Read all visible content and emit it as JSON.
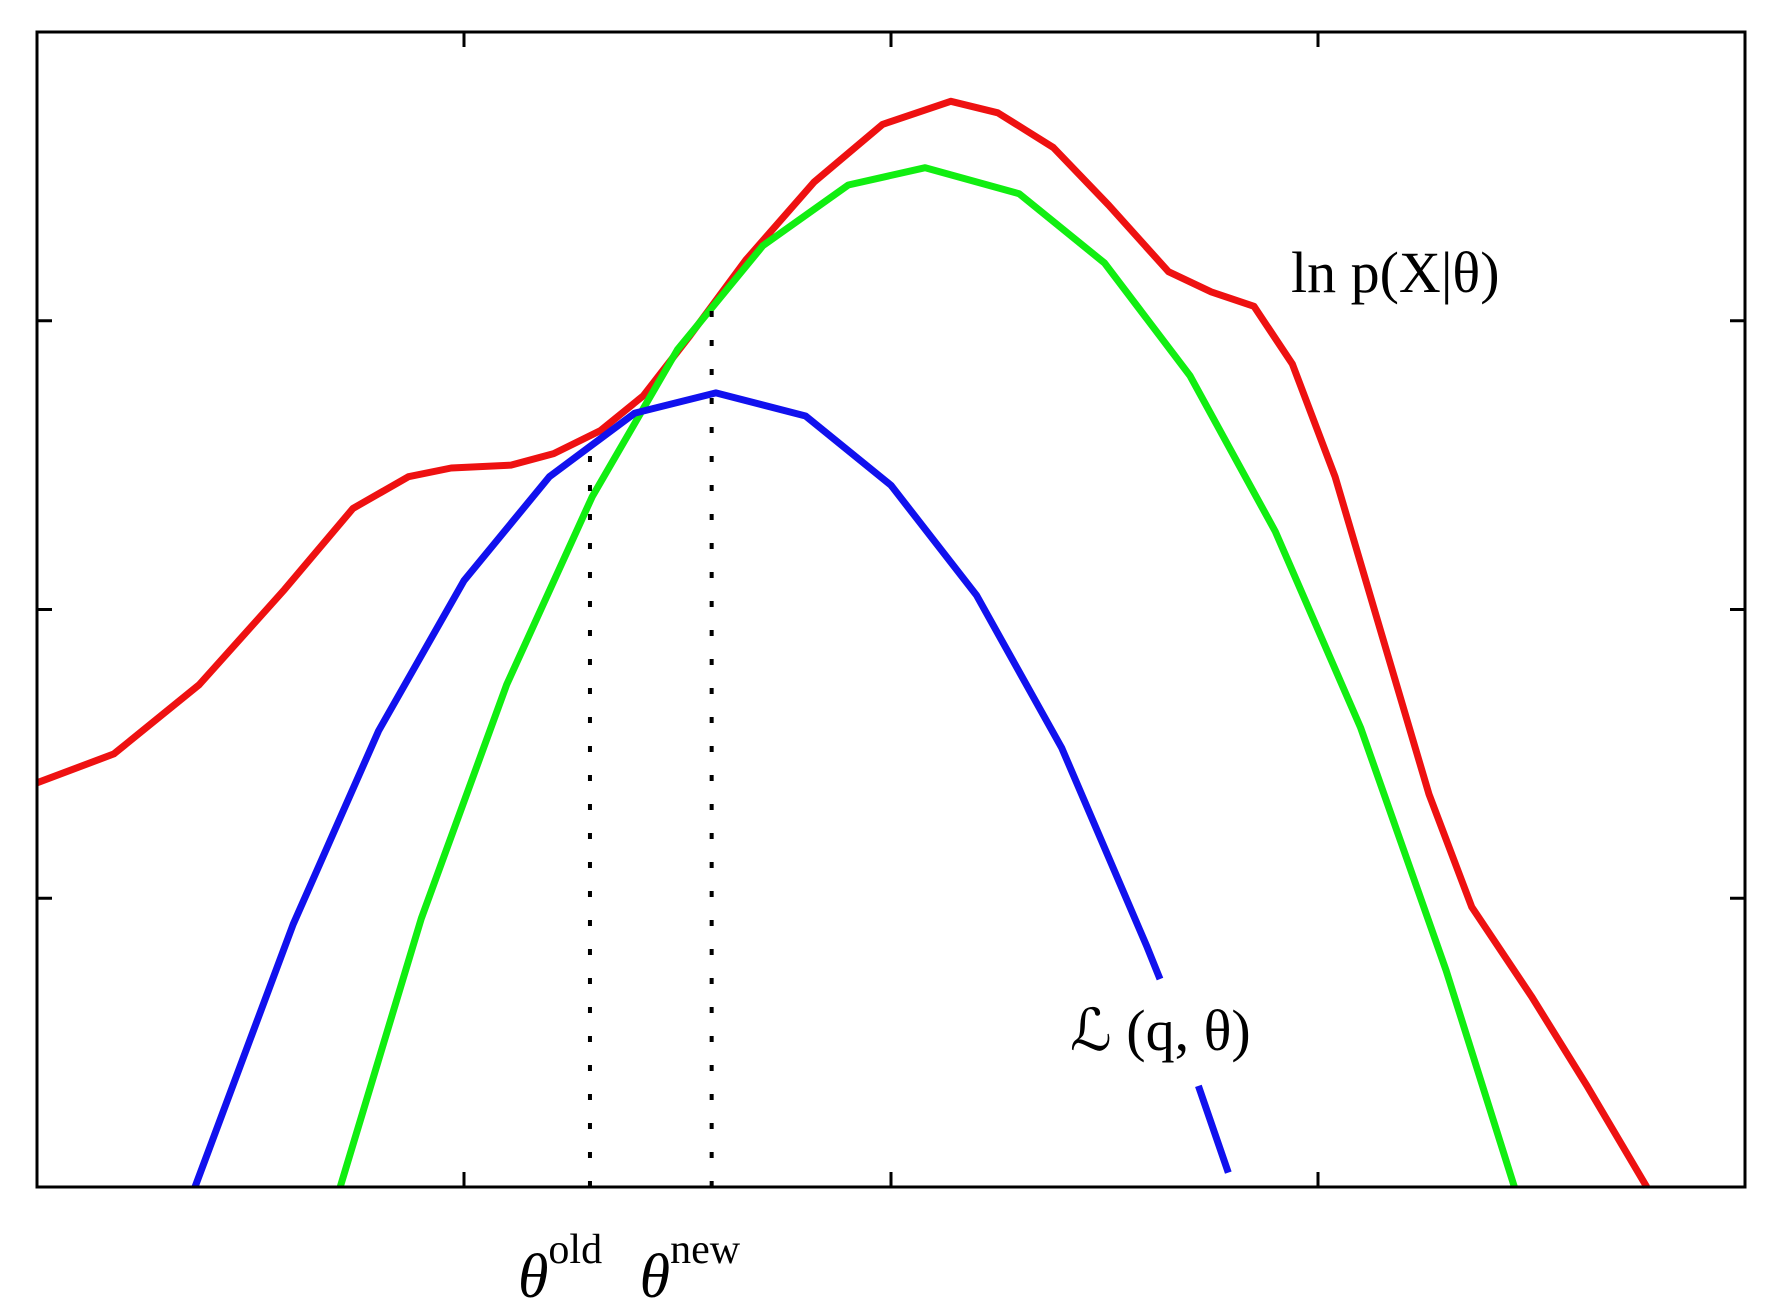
{
  "chart_data": {
    "type": "line",
    "xlim": [
      0,
      4
    ],
    "ylim": [
      0,
      4
    ],
    "xticks": [
      1,
      2,
      3
    ],
    "yticks": [
      1,
      2,
      3
    ],
    "series": [
      {
        "name": "ln p(X|θ)",
        "color": "#ee1111",
        "x": [
          0,
          0.18,
          0.38,
          0.58,
          0.74,
          0.87,
          0.97,
          1.11,
          1.21,
          1.32,
          1.42,
          1.53,
          1.66,
          1.82,
          1.98,
          2.14,
          2.25,
          2.38,
          2.51,
          2.65,
          2.75,
          2.85,
          2.94,
          3.04,
          3.15,
          3.26,
          3.36,
          3.5,
          3.63,
          3.77
        ],
        "values": [
          1.4,
          1.5,
          1.74,
          2.07,
          2.35,
          2.46,
          2.49,
          2.5,
          2.54,
          2.62,
          2.74,
          2.95,
          3.21,
          3.48,
          3.68,
          3.76,
          3.72,
          3.6,
          3.4,
          3.17,
          3.1,
          3.05,
          2.85,
          2.46,
          1.91,
          1.36,
          0.97,
          0.66,
          0.35,
          0
        ]
      },
      {
        "color": "#11ee11",
        "x": [
          0.71,
          0.9,
          1.1,
          1.3,
          1.5,
          1.7,
          1.9,
          2.08,
          2.3,
          2.5,
          2.7,
          2.9,
          3.1,
          3.3,
          3.46
        ],
        "values": [
          0,
          0.93,
          1.74,
          2.39,
          2.9,
          3.26,
          3.47,
          3.53,
          3.44,
          3.2,
          2.81,
          2.27,
          1.59,
          0.75,
          0
        ]
      },
      {
        "name": "ℒ (q, θ)",
        "color": "#1111ee",
        "x": [
          0.37,
          0.6,
          0.8,
          1.0,
          1.2,
          1.4,
          1.59,
          1.8,
          2.0,
          2.2,
          2.4,
          2.6,
          2.63,
          2.67,
          2.72,
          2.79
        ],
        "values": [
          0,
          0.91,
          1.58,
          2.1,
          2.46,
          2.68,
          2.75,
          2.67,
          2.43,
          2.05,
          1.52,
          0.83,
          0.72,
          null,
          0.35,
          0.05
        ]
      }
    ],
    "markers": [
      {
        "x": 1.295,
        "label": "θ",
        "sup": "old"
      },
      {
        "x": 1.58,
        "label": "θ",
        "sup": "new"
      }
    ]
  }
}
